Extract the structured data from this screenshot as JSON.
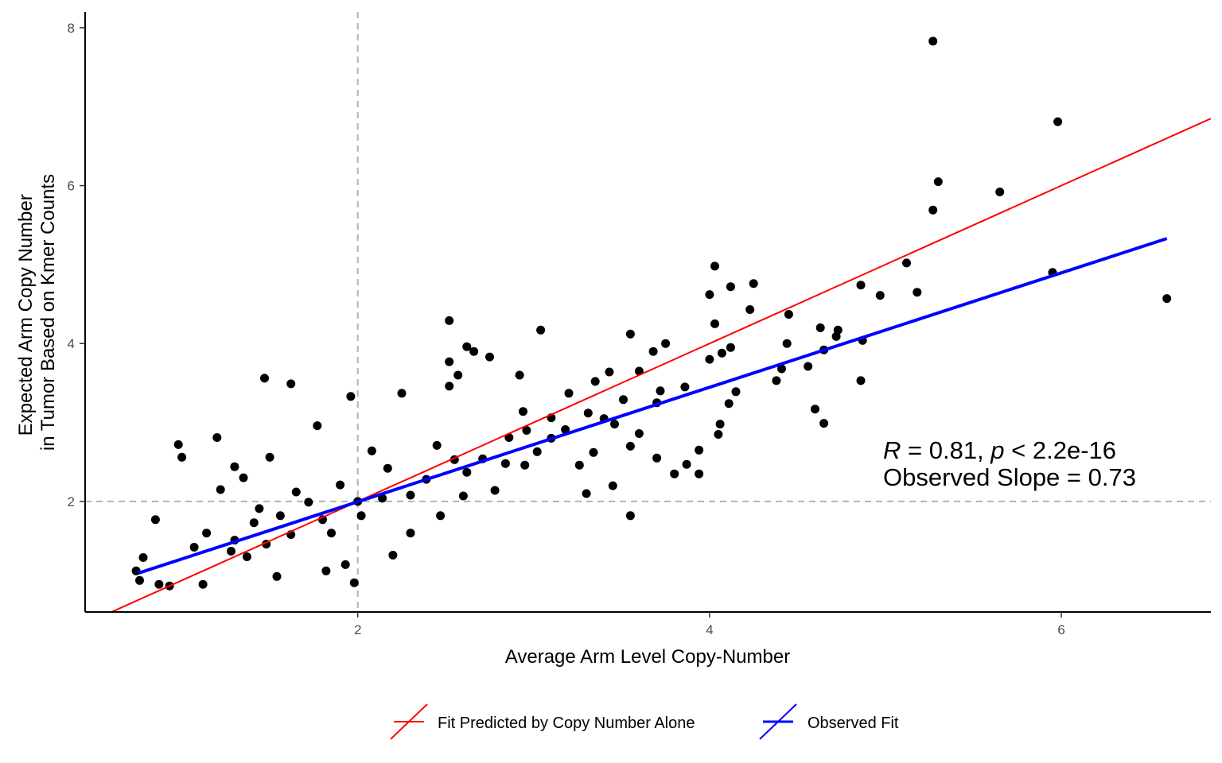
{
  "chart_data": {
    "type": "scatter",
    "title": "",
    "xlabel": "Average Arm Level Copy-Number",
    "ylabel_lines": [
      "Expected Arm Copy Number",
      "in Tumor Based on Kmer Counts"
    ],
    "xlim": [
      0.45,
      6.85
    ],
    "ylim": [
      0.6,
      8.2
    ],
    "x_ticks": [
      2,
      4,
      6
    ],
    "y_ticks": [
      2,
      4,
      6,
      8
    ],
    "grid": false,
    "reference_lines": {
      "x": 2,
      "y": 2,
      "style": "dashed",
      "color": "#b3b3b3"
    },
    "annotation": {
      "line1": {
        "r_symbol": "R",
        "r_text": " = 0.81, ",
        "p_symbol": "p",
        "p_text": " < 2.2e-16"
      },
      "line2": "Observed Slope = 0.73"
    },
    "legend_position": "bottom",
    "series": [
      {
        "name": "Fit Predicted by Copy Number Alone",
        "type": "line",
        "color": "#ff0000",
        "x": [
          0.45,
          6.85
        ],
        "y": [
          0.45,
          6.85
        ]
      },
      {
        "name": "Observed Fit",
        "type": "line",
        "color": "#0000ff",
        "x": [
          0.75,
          6.6
        ],
        "y": [
          1.09,
          5.33
        ]
      },
      {
        "name": "Arms",
        "type": "scatter",
        "color": "#000000",
        "points": [
          [
            5.27,
            7.83
          ],
          [
            5.98,
            6.81
          ],
          [
            5.3,
            6.05
          ],
          [
            5.27,
            5.69
          ],
          [
            5.65,
            5.92
          ],
          [
            5.95,
            4.9
          ],
          [
            6.6,
            4.57
          ],
          [
            5.12,
            5.02
          ],
          [
            5.18,
            4.65
          ],
          [
            4.97,
            4.61
          ],
          [
            4.86,
            4.74
          ],
          [
            4.87,
            4.04
          ],
          [
            4.86,
            3.53
          ],
          [
            4.03,
            4.98
          ],
          [
            4.0,
            4.62
          ],
          [
            4.12,
            4.72
          ],
          [
            4.25,
            4.76
          ],
          [
            4.23,
            4.43
          ],
          [
            4.45,
            4.37
          ],
          [
            4.63,
            4.2
          ],
          [
            4.73,
            4.17
          ],
          [
            4.72,
            4.09
          ],
          [
            4.65,
            3.92
          ],
          [
            4.44,
            4.0
          ],
          [
            4.56,
            3.71
          ],
          [
            4.41,
            3.68
          ],
          [
            4.38,
            3.53
          ],
          [
            4.6,
            3.17
          ],
          [
            4.65,
            2.99
          ],
          [
            4.03,
            4.25
          ],
          [
            4.12,
            3.95
          ],
          [
            4.07,
            3.88
          ],
          [
            4.0,
            3.8
          ],
          [
            4.15,
            3.39
          ],
          [
            4.11,
            3.24
          ],
          [
            4.06,
            2.98
          ],
          [
            4.05,
            2.85
          ],
          [
            3.94,
            2.65
          ],
          [
            3.8,
            2.35
          ],
          [
            3.87,
            2.47
          ],
          [
            3.94,
            2.35
          ],
          [
            3.55,
            1.82
          ],
          [
            3.45,
            2.2
          ],
          [
            3.3,
            2.1
          ],
          [
            2.52,
            4.29
          ],
          [
            3.55,
            4.12
          ],
          [
            3.04,
            4.17
          ],
          [
            2.62,
            3.96
          ],
          [
            2.66,
            3.9
          ],
          [
            2.75,
            3.83
          ],
          [
            2.52,
            3.77
          ],
          [
            2.57,
            3.6
          ],
          [
            2.52,
            3.46
          ],
          [
            1.47,
            3.56
          ],
          [
            1.62,
            3.49
          ],
          [
            0.98,
            2.72
          ],
          [
            1.0,
            2.56
          ],
          [
            1.2,
            2.81
          ],
          [
            1.3,
            2.44
          ],
          [
            0.85,
            1.77
          ],
          [
            0.78,
            1.29
          ],
          [
            0.74,
            1.12
          ],
          [
            0.76,
            1.0
          ],
          [
            0.87,
            0.95
          ],
          [
            0.93,
            0.93
          ],
          [
            1.12,
            0.95
          ],
          [
            1.98,
            0.97
          ],
          [
            1.96,
            3.33
          ],
          [
            2.25,
            3.37
          ],
          [
            3.75,
            4.0
          ],
          [
            3.68,
            3.9
          ],
          [
            3.43,
            3.64
          ],
          [
            3.35,
            3.52
          ],
          [
            3.6,
            3.65
          ],
          [
            3.31,
            3.12
          ],
          [
            3.2,
            3.37
          ],
          [
            3.51,
            3.29
          ],
          [
            3.72,
            3.4
          ],
          [
            3.86,
            3.45
          ],
          [
            3.7,
            3.25
          ],
          [
            3.1,
            3.06
          ],
          [
            3.46,
            2.98
          ],
          [
            3.6,
            2.86
          ],
          [
            3.34,
            2.62
          ],
          [
            3.26,
            2.46
          ],
          [
            3.55,
            2.7
          ],
          [
            3.7,
            2.55
          ],
          [
            2.92,
            3.6
          ],
          [
            2.94,
            3.14
          ],
          [
            2.96,
            2.9
          ],
          [
            2.84,
            2.48
          ],
          [
            2.6,
            2.07
          ],
          [
            2.47,
            1.82
          ],
          [
            2.3,
            1.6
          ],
          [
            2.2,
            1.32
          ],
          [
            1.93,
            1.2
          ],
          [
            1.82,
            1.12
          ],
          [
            1.54,
            1.05
          ],
          [
            1.37,
            1.3
          ],
          [
            1.07,
            1.42
          ],
          [
            1.14,
            1.6
          ],
          [
            1.22,
            2.15
          ],
          [
            1.35,
            2.3
          ],
          [
            1.5,
            2.56
          ],
          [
            1.77,
            2.96
          ],
          [
            2.08,
            2.64
          ],
          [
            2.45,
            2.71
          ],
          [
            2.17,
            2.42
          ],
          [
            1.9,
            2.21
          ],
          [
            1.72,
            1.99
          ],
          [
            1.56,
            1.82
          ],
          [
            1.41,
            1.73
          ],
          [
            1.3,
            1.51
          ],
          [
            2.71,
            2.54
          ],
          [
            2.86,
            2.81
          ],
          [
            3.02,
            2.63
          ],
          [
            3.1,
            2.8
          ],
          [
            2.62,
            2.37
          ],
          [
            2.39,
            2.28
          ],
          [
            2.14,
            2.04
          ],
          [
            2.02,
            1.82
          ],
          [
            1.8,
            1.77
          ],
          [
            1.62,
            1.58
          ],
          [
            1.48,
            1.46
          ],
          [
            1.28,
            1.37
          ],
          [
            2.95,
            2.46
          ],
          [
            3.18,
            2.91
          ],
          [
            3.4,
            3.05
          ],
          [
            2.78,
            2.14
          ],
          [
            2.55,
            2.53
          ],
          [
            2.3,
            2.08
          ],
          [
            2.0,
            2.0
          ],
          [
            1.85,
            1.6
          ],
          [
            1.65,
            2.12
          ],
          [
            1.44,
            1.91
          ]
        ]
      }
    ]
  }
}
